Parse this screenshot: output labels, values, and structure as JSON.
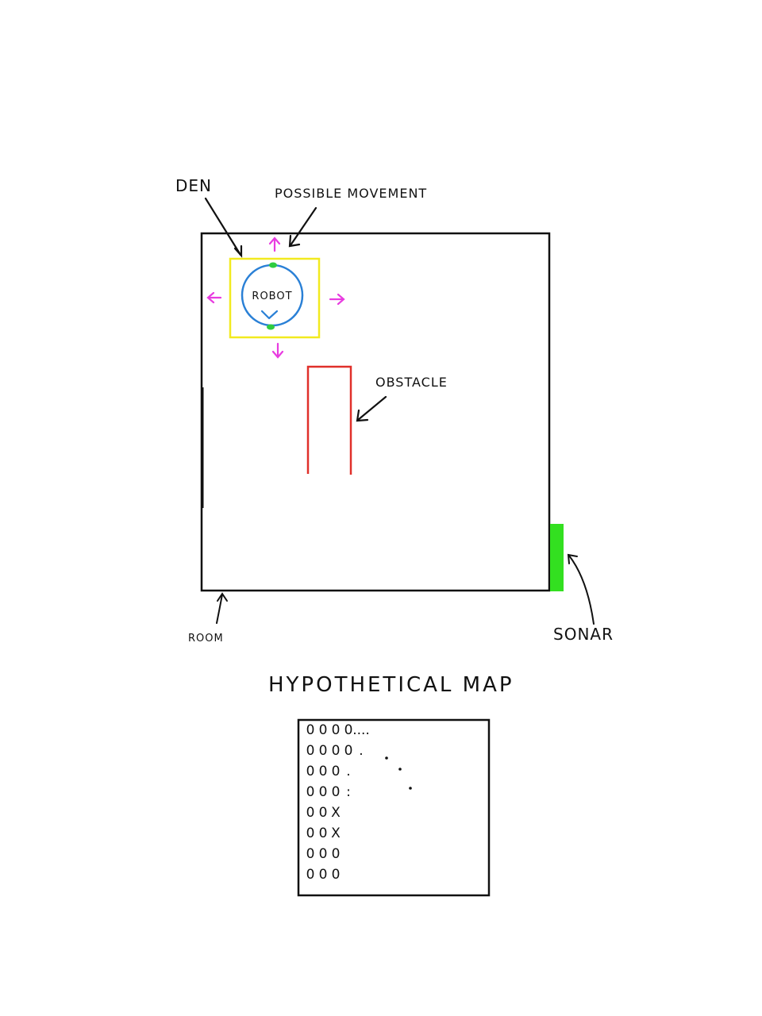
{
  "labels": {
    "den": "DEN",
    "possible_movement": "POSSIBLE MOVEMENT",
    "robot": "ROBOT",
    "obstacle": "OBSTACLE",
    "room": "ROOM",
    "sonar": "SONAR",
    "map_title": "HYPOTHETICAL MAP"
  },
  "colors": {
    "room_wall": "#111111",
    "den": "#f2ea1f",
    "robot": "#2a80d6",
    "robot_markers": "#2ecc40",
    "arrows": "#e83ce0",
    "obstacle": "#e0302a",
    "sonar": "#33e020"
  },
  "map_grid": {
    "rows": [
      [
        "0",
        "0",
        "0",
        "0",
        "...."
      ],
      [
        "0",
        "0",
        "0",
        "0",
        "."
      ],
      [
        "0",
        "0",
        "0",
        "."
      ],
      [
        "0",
        "0",
        "0",
        ":"
      ],
      [
        "0",
        "0",
        "X"
      ],
      [
        "0",
        "0",
        "X"
      ],
      [
        "0",
        "0",
        "0"
      ],
      [
        "0",
        "0",
        "0"
      ]
    ]
  }
}
